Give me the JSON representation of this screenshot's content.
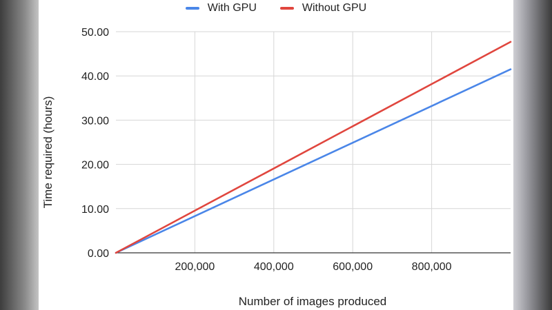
{
  "chart_data": {
    "type": "line",
    "title": "",
    "xlabel": "Number of images produced",
    "ylabel": "Time required (hours)",
    "xlim": [
      0,
      1000000
    ],
    "ylim": [
      0,
      50
    ],
    "x_ticks": [
      200000,
      400000,
      600000,
      800000
    ],
    "x_tick_labels": [
      "200,000",
      "400,000",
      "600,000",
      "800,000"
    ],
    "y_ticks": [
      0,
      10,
      20,
      30,
      40,
      50
    ],
    "y_tick_labels": [
      "0.00",
      "10.00",
      "20.00",
      "30.00",
      "40.00",
      "50.00"
    ],
    "grid": true,
    "legend_position": "top",
    "series": [
      {
        "name": "With GPU",
        "color": "#4a86e8",
        "x": [
          0,
          1000000
        ],
        "y": [
          0,
          41.5
        ]
      },
      {
        "name": "Without GPU",
        "color": "#e0463e",
        "x": [
          0,
          1000000
        ],
        "y": [
          0,
          47.7
        ]
      }
    ]
  }
}
